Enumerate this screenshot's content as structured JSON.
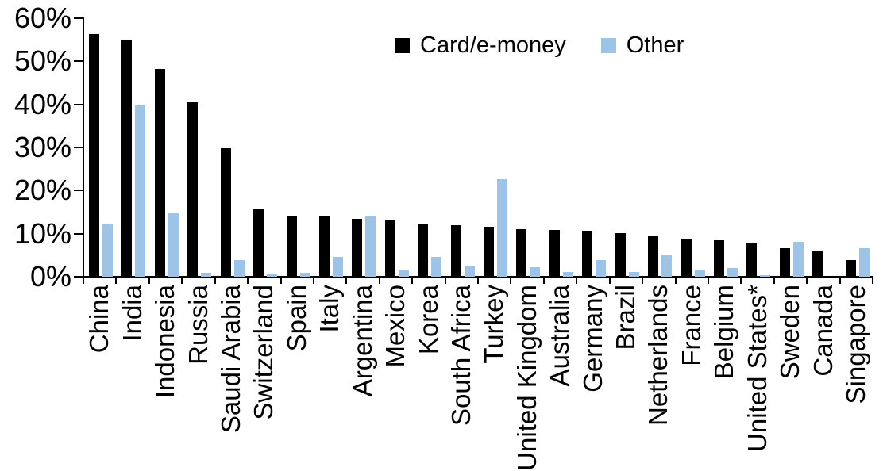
{
  "chart_data": {
    "type": "bar",
    "title": "",
    "xlabel": "",
    "ylabel": "",
    "ylim": [
      0,
      60
    ],
    "grid": false,
    "legend_position": "top-center",
    "yticks": [
      "60%",
      "50%",
      "40%",
      "30%",
      "20%",
      "10%",
      "0%"
    ],
    "categories": [
      "China",
      "India",
      "Indonesia",
      "Russia",
      "Saudi Arabia",
      "Switzerland",
      "Spain",
      "Italy",
      "Argentina",
      "Mexico",
      "Korea",
      "South Africa",
      "Turkey",
      "United Kingdom",
      "Australia",
      "Germany",
      "Brazil",
      "Netherlands",
      "France",
      "Belgium",
      "United States*",
      "Sweden",
      "Canada",
      "Singapore"
    ],
    "series": [
      {
        "name": "Card/e-money",
        "color": "#000000",
        "values": [
          56.3,
          55.0,
          48.3,
          40.5,
          29.9,
          15.6,
          14.1,
          14.1,
          13.5,
          13.1,
          12.2,
          11.9,
          11.6,
          11.1,
          10.9,
          10.6,
          10.1,
          9.4,
          8.7,
          8.4,
          7.9,
          6.6,
          6.0,
          3.9
        ]
      },
      {
        "name": "Other",
        "color": "#9DC3E6",
        "values": [
          12.4,
          39.7,
          14.7,
          1.0,
          3.9,
          0.8,
          1.0,
          4.6,
          14.0,
          1.4,
          4.7,
          2.4,
          22.6,
          2.3,
          1.2,
          3.9,
          1.2,
          4.9,
          1.6,
          2.0,
          0.3,
          8.1,
          0,
          6.6
        ]
      }
    ]
  },
  "colors": {
    "axis": "#000000",
    "background": "#ffffff",
    "series_card": "#000000",
    "series_other": "#9DC3E6"
  }
}
